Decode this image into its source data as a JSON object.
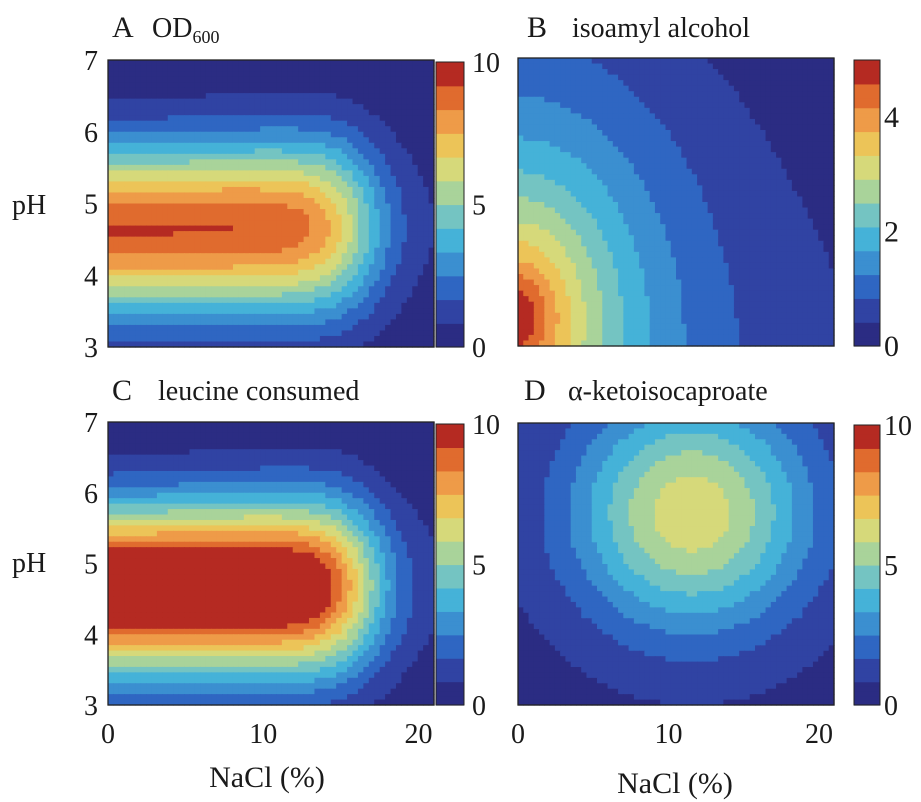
{
  "colormap": [
    "#2b2c83",
    "#3043a3",
    "#2f66c2",
    "#3b8fd0",
    "#45b2d8",
    "#74c4c2",
    "#a9d39a",
    "#d6d97a",
    "#ecc458",
    "#ee9b48",
    "#e06b2e",
    "#b52a22"
  ],
  "chart_data": [
    {
      "type": "contour",
      "letter": "A",
      "title": "OD",
      "title_sub": "600",
      "xlabel": "",
      "ylabel": "pH",
      "xlim": [
        0,
        21
      ],
      "ylim": [
        3,
        7
      ],
      "x_ticks": [],
      "y_ticks": [
        "3",
        "4",
        "5",
        "6",
        "7"
      ],
      "colorbar": {
        "min": 0,
        "max": 10,
        "ticks": [
          "0",
          "5",
          "10"
        ],
        "cmax": 10
      },
      "model": {
        "kind": "od",
        "scale": 9.2
      }
    },
    {
      "type": "contour",
      "letter": "B",
      "title": "isoamyl alcohol",
      "title_sub": "",
      "xlabel": "",
      "ylabel": "",
      "xlim": [
        0,
        21
      ],
      "ylim": [
        3,
        7
      ],
      "x_ticks": [],
      "y_ticks": [],
      "colorbar": {
        "min": 0,
        "max": 5,
        "ticks": [
          "0",
          "2",
          "4"
        ],
        "cmax": 5
      },
      "model": {
        "kind": "iso",
        "scale": 5.2
      }
    },
    {
      "type": "contour",
      "letter": "C",
      "title": "leucine consumed",
      "title_sub": "",
      "xlabel": "NaCl (%)",
      "ylabel": "pH",
      "xlim": [
        0,
        21
      ],
      "ylim": [
        3,
        7
      ],
      "x_ticks": [
        "0",
        "10",
        "20"
      ],
      "y_ticks": [
        "3",
        "4",
        "5",
        "6",
        "7"
      ],
      "colorbar": {
        "min": 0,
        "max": 10,
        "ticks": [
          "0",
          "5",
          "10"
        ],
        "cmax": 10
      },
      "model": {
        "kind": "od",
        "scale": 11.6
      }
    },
    {
      "type": "contour",
      "letter": "D",
      "title": "α-ketoisocaproate",
      "title_sub": "",
      "xlabel": "NaCl (%)",
      "ylabel": "",
      "xlim": [
        0,
        21
      ],
      "ylim": [
        3,
        7
      ],
      "x_ticks": [
        "0",
        "10",
        "20"
      ],
      "y_ticks": [],
      "colorbar": {
        "min": 0,
        "max": 10,
        "ticks": [
          "0",
          "5",
          "10"
        ],
        "cmax": 10
      },
      "model": {
        "kind": "kic",
        "scale": 6.0
      }
    }
  ]
}
